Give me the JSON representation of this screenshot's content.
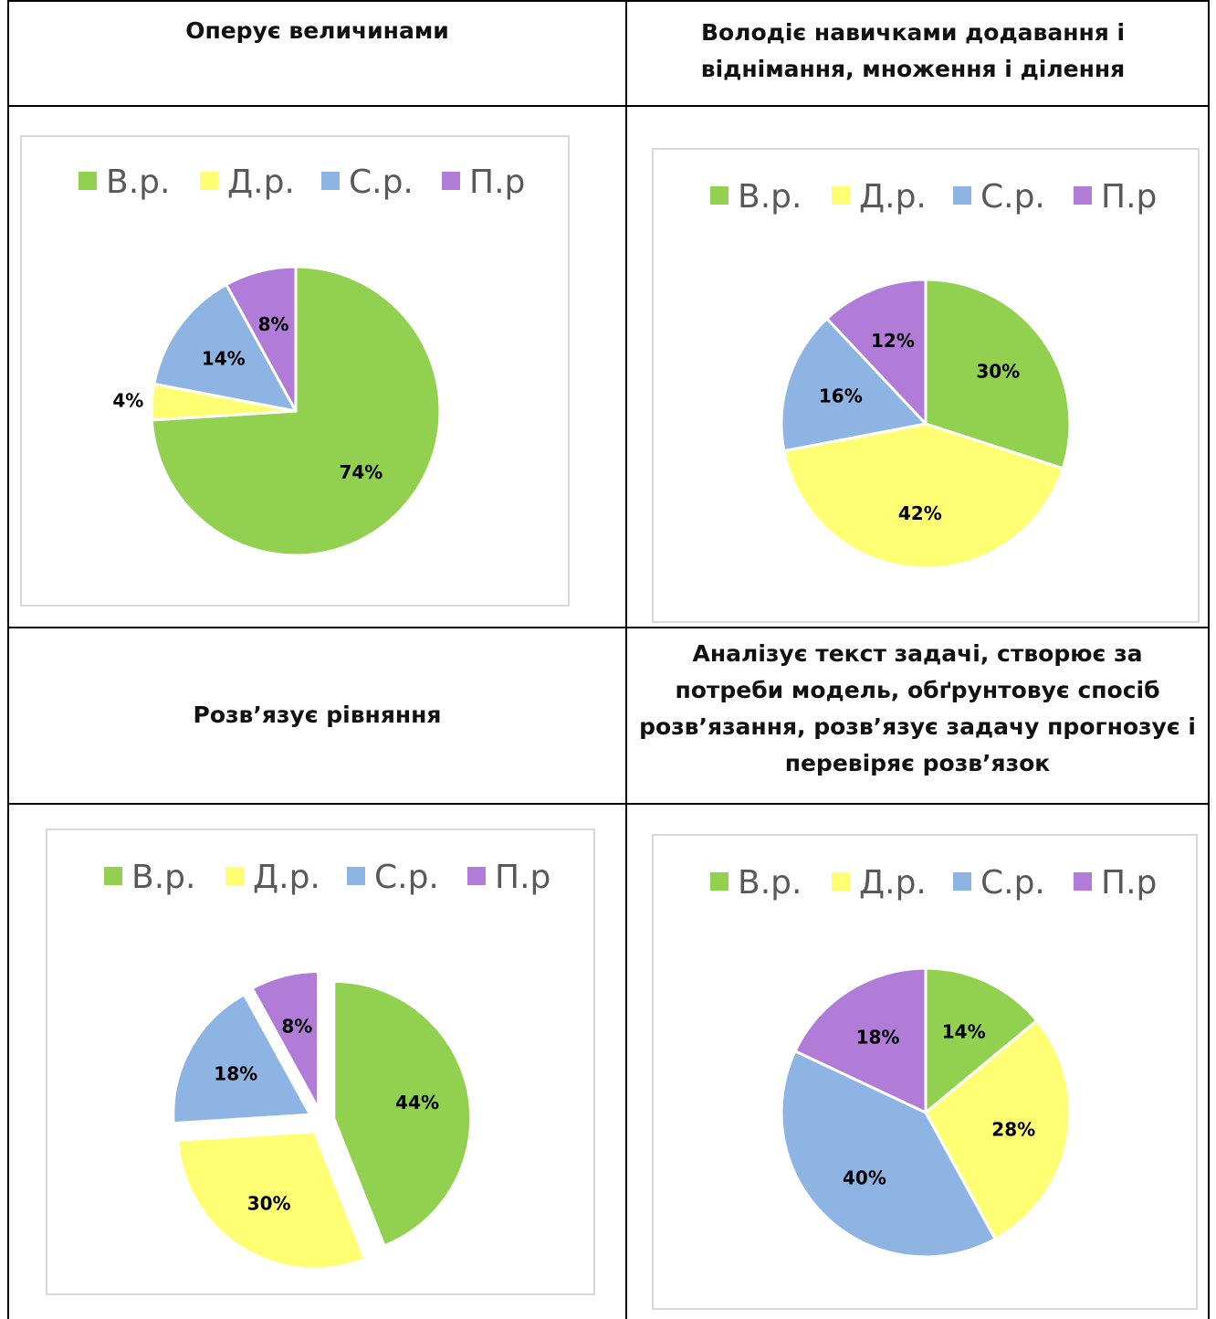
{
  "headers": {
    "h1": "Оперує величинами",
    "h2": "Володіє навичками додавання і віднімання, множення і ділення",
    "h3": "Розв’язує рівняння",
    "h4": "Аналізує текст задачі, створює за потреби модель, обґрунтовує спосіб розв’язання, розв’язує задачу прогнозує і перевіряє розв’язок"
  },
  "chart_data": [
    {
      "type": "pie",
      "categories": [
        "В.р.",
        "Д.р.",
        "С.р.",
        "П.р"
      ],
      "values": [
        74,
        4,
        14,
        8
      ],
      "data_labels": [
        "74%",
        "4%",
        "14%",
        "8%"
      ],
      "colors": [
        "#92d050",
        "#ffff73",
        "#8eb4e3",
        "#b07cd8"
      ],
      "legend": "top"
    },
    {
      "type": "pie",
      "categories": [
        "В.р.",
        "Д.р.",
        "С.р.",
        "П.р"
      ],
      "values": [
        30,
        42,
        16,
        12
      ],
      "data_labels": [
        "30%",
        "42%",
        "16%",
        "12%"
      ],
      "colors": [
        "#92d050",
        "#ffff73",
        "#8eb4e3",
        "#b07cd8"
      ],
      "legend": "top"
    },
    {
      "type": "pie",
      "categories": [
        "В.р.",
        "Д.р.",
        "С.р.",
        "П.р"
      ],
      "values": [
        44,
        30,
        18,
        8
      ],
      "data_labels": [
        "44%",
        "30%",
        "18%",
        "8%"
      ],
      "colors": [
        "#92d050",
        "#ffff73",
        "#8eb4e3",
        "#b07cd8"
      ],
      "legend": "top",
      "exploded": true
    },
    {
      "type": "pie",
      "categories": [
        "В.р.",
        "Д.р.",
        "С.р.",
        "П.р"
      ],
      "values": [
        14,
        28,
        40,
        18
      ],
      "data_labels": [
        "14%",
        "28%",
        "40%",
        "18%"
      ],
      "colors": [
        "#92d050",
        "#ffff73",
        "#8eb4e3",
        "#b07cd8"
      ],
      "legend": "top"
    }
  ]
}
